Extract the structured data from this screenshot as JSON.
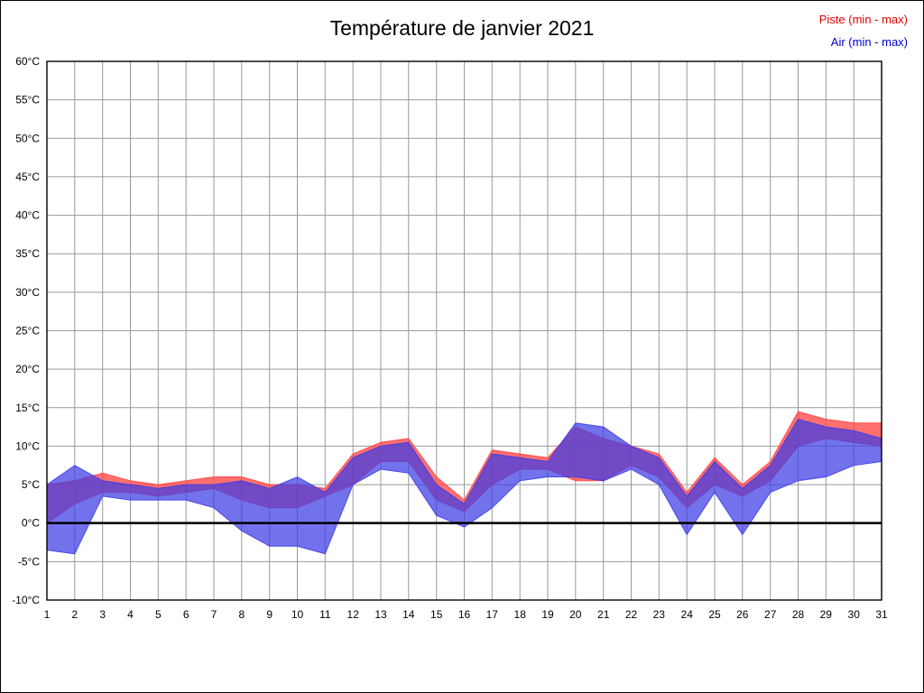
{
  "title": "Température de janvier 2021",
  "legend": {
    "piste": "Piste (min - max)",
    "air": "Air (min - max)"
  },
  "chart_data": {
    "type": "area",
    "title": "Température de janvier 2021",
    "xlabel": "",
    "ylabel": "°C",
    "x": [
      1,
      2,
      3,
      4,
      5,
      6,
      7,
      8,
      9,
      10,
      11,
      12,
      13,
      14,
      15,
      16,
      17,
      18,
      19,
      20,
      21,
      22,
      23,
      24,
      25,
      26,
      27,
      28,
      29,
      30,
      31
    ],
    "ylim": [
      -10,
      60
    ],
    "ytick_step": 5,
    "grid": true,
    "legend_position": "top-right",
    "zero_line": true,
    "series": [
      {
        "name": "Piste (min - max)",
        "color": "#ff4646",
        "fill_opacity": 0.78,
        "min": [
          0,
          2.5,
          4,
          4,
          3.5,
          4,
          4.5,
          3,
          2,
          2,
          3.5,
          5,
          8,
          8,
          3,
          1.5,
          5,
          7,
          7,
          5.5,
          5.5,
          7.5,
          6,
          2,
          5,
          3.5,
          5.5,
          10,
          11,
          10.5,
          10
        ],
        "max": [
          5,
          5.5,
          6.5,
          5.5,
          5,
          5.5,
          6,
          6,
          5,
          5,
          4.5,
          9,
          10.5,
          11,
          6,
          3,
          9.5,
          9,
          8.5,
          12.5,
          11,
          10,
          9,
          4,
          8.5,
          5,
          8,
          14.5,
          13.5,
          13,
          13
        ]
      },
      {
        "name": "Air (min - max)",
        "color": "#3c3ce6",
        "fill_opacity": 0.72,
        "min": [
          -3.5,
          -4,
          3.5,
          3,
          3,
          3,
          2,
          -1,
          -3,
          -3,
          -4,
          5,
          7,
          6.5,
          1,
          -0.5,
          2,
          5.5,
          6,
          6,
          5.5,
          7,
          5,
          -1.5,
          4,
          -1.5,
          4,
          5.5,
          6,
          7.5,
          8
        ],
        "max": [
          5,
          7.5,
          5.5,
          5,
          4.5,
          5,
          5,
          5.5,
          4.5,
          6,
          4,
          8.5,
          10,
          10.5,
          5,
          2.5,
          9,
          8.5,
          8,
          13,
          12.5,
          10,
          8.5,
          3.5,
          8,
          4.5,
          7.5,
          13.5,
          12.5,
          12,
          11
        ]
      }
    ],
    "colors": {
      "grid": "#999999",
      "border": "#000000",
      "zero_line": "#000000",
      "tick_label": "#000000"
    }
  }
}
